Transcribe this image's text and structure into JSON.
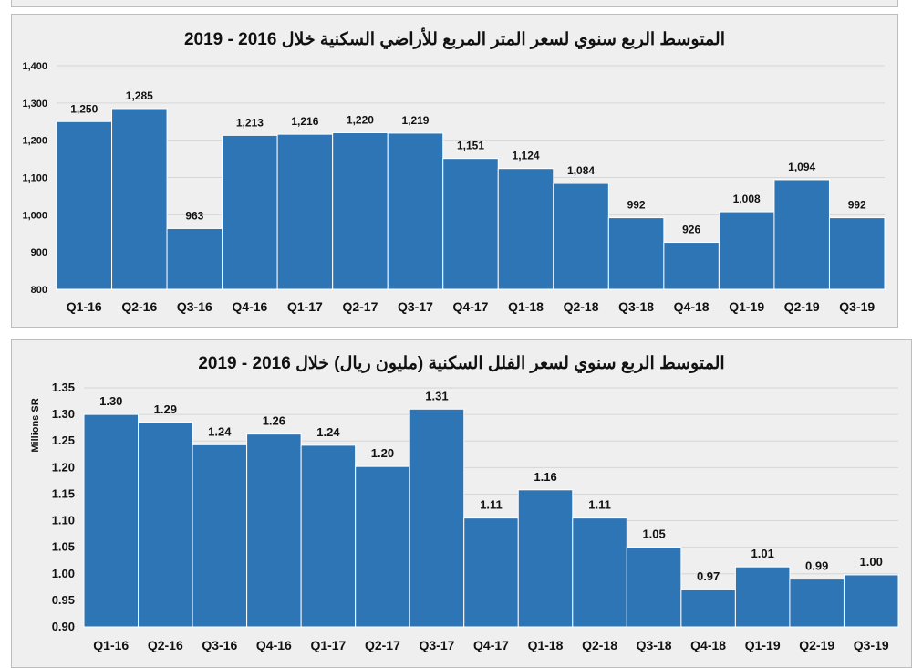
{
  "chart_data": [
    {
      "type": "bar",
      "title": "المتوسط الربع سنوي لسعر المتر المربع للأراضي السكنية خلال 2016 - 2019",
      "xlabel": "",
      "ylabel": "",
      "categories": [
        "Q1-16",
        "Q2-16",
        "Q3-16",
        "Q4-16",
        "Q1-17",
        "Q2-17",
        "Q3-17",
        "Q4-17",
        "Q1-18",
        "Q2-18",
        "Q3-18",
        "Q4-18",
        "Q1-19",
        "Q2-19",
        "Q3-19"
      ],
      "values": [
        1250,
        1285,
        963,
        1213,
        1216,
        1220,
        1219,
        1151,
        1124,
        1084,
        992,
        926,
        1008,
        1094,
        992
      ],
      "data_labels": [
        "1,250",
        "1,285",
        "963",
        "1,213",
        "1,216",
        "1,220",
        "1,219",
        "1,151",
        "1,124",
        "1,084",
        "992",
        "926",
        "1,008",
        "1,094",
        "992"
      ],
      "ylim": [
        800,
        1400
      ],
      "yticks": [
        "800",
        "900",
        "1,000",
        "1,100",
        "1,200",
        "1,300",
        "1,400"
      ],
      "grid": true,
      "bar_color": "#2e75b6"
    },
    {
      "type": "bar",
      "title": "المتوسط الربع سنوي لسعر الفلل السكنية (مليون ريال) خلال 2016 - 2019",
      "xlabel": "",
      "ylabel": "Millions SR",
      "categories": [
        "Q1-16",
        "Q2-16",
        "Q3-16",
        "Q4-16",
        "Q1-17",
        "Q2-17",
        "Q3-17",
        "Q4-17",
        "Q1-18",
        "Q2-18",
        "Q3-18",
        "Q4-18",
        "Q1-19",
        "Q2-19",
        "Q3-19"
      ],
      "values": [
        1.3,
        1.285,
        1.243,
        1.263,
        1.242,
        1.202,
        1.31,
        1.105,
        1.158,
        1.105,
        1.05,
        0.97,
        1.013,
        0.99,
        0.998
      ],
      "data_labels": [
        "1.30",
        "1.29",
        "1.24",
        "1.26",
        "1.24",
        "1.20",
        "1.31",
        "1.11",
        "1.16",
        "1.11",
        "1.05",
        "0.97",
        "1.01",
        "0.99",
        "1.00"
      ],
      "ylim": [
        0.9,
        1.35
      ],
      "yticks": [
        "0.90",
        "0.95",
        "1.00",
        "1.05",
        "1.10",
        "1.15",
        "1.20",
        "1.25",
        "1.30",
        "1.35"
      ],
      "grid": true,
      "bar_color": "#2e75b6"
    }
  ]
}
